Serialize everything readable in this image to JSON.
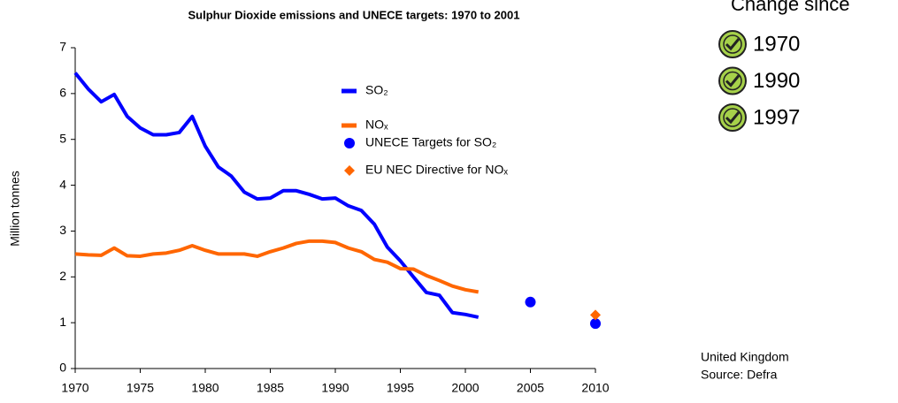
{
  "chart_data": {
    "type": "line",
    "title": "Sulphur Dioxide emissions and UNECE targets: 1970 to 2001",
    "ylabel": "Million tonnes",
    "xlim": [
      1970,
      2010
    ],
    "xticks": [
      1970,
      1975,
      1980,
      1985,
      1990,
      1995,
      2000,
      2005,
      2010
    ],
    "ylim": [
      0,
      7
    ],
    "yticks": [
      0,
      1,
      2,
      3,
      4,
      5,
      6,
      7
    ],
    "grid": false,
    "series": [
      {
        "name": "SO₂",
        "color": "#0000ff",
        "style": "line",
        "x": [
          1970,
          1971,
          1972,
          1973,
          1974,
          1975,
          1976,
          1977,
          1978,
          1979,
          1980,
          1981,
          1982,
          1983,
          1984,
          1985,
          1986,
          1987,
          1988,
          1989,
          1990,
          1991,
          1992,
          1993,
          1994,
          1995,
          1996,
          1997,
          1998,
          1999,
          2000,
          2001
        ],
        "values": [
          6.45,
          6.1,
          5.82,
          5.98,
          5.5,
          5.25,
          5.1,
          5.1,
          5.15,
          5.5,
          4.85,
          4.4,
          4.2,
          3.85,
          3.7,
          3.72,
          3.88,
          3.88,
          3.8,
          3.7,
          3.72,
          3.55,
          3.45,
          3.15,
          2.65,
          2.35,
          2.0,
          1.66,
          1.6,
          1.22,
          1.18,
          1.12
        ]
      },
      {
        "name": "NOₓ",
        "color": "#ff6600",
        "style": "line",
        "x": [
          1970,
          1971,
          1972,
          1973,
          1974,
          1975,
          1976,
          1977,
          1978,
          1979,
          1980,
          1981,
          1982,
          1983,
          1984,
          1985,
          1986,
          1987,
          1988,
          1989,
          1990,
          1991,
          1992,
          1993,
          1994,
          1995,
          1996,
          1997,
          1998,
          1999,
          2000,
          2001
        ],
        "values": [
          2.5,
          2.48,
          2.47,
          2.63,
          2.46,
          2.45,
          2.5,
          2.52,
          2.58,
          2.68,
          2.58,
          2.5,
          2.5,
          2.5,
          2.45,
          2.55,
          2.63,
          2.73,
          2.78,
          2.78,
          2.75,
          2.63,
          2.55,
          2.38,
          2.32,
          2.18,
          2.17,
          2.03,
          1.92,
          1.8,
          1.72,
          1.67
        ]
      },
      {
        "name": "UNECE Targets for SO₂",
        "color": "#0000ff",
        "style": "circle",
        "x": [
          2005,
          2010
        ],
        "values": [
          1.45,
          0.98
        ]
      },
      {
        "name": "EU NEC Directive for NOₓ",
        "color": "#ff6600",
        "style": "diamond",
        "x": [
          2010
        ],
        "values": [
          1.17
        ]
      }
    ]
  },
  "side_panel": {
    "heading": "Change since",
    "items": [
      "1970",
      "1990",
      "1997"
    ]
  },
  "footnote": [
    "United Kingdom",
    "Source: Defra"
  ]
}
